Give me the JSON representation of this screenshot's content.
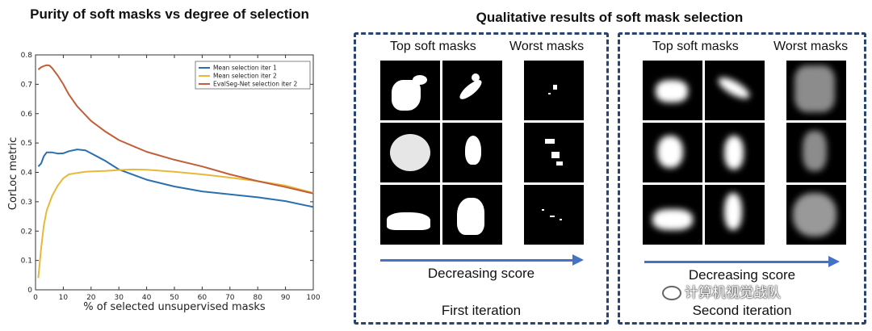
{
  "chart_data": {
    "type": "line",
    "title": "Purity of soft masks vs degree of selection",
    "xlabel": "% of selected unsupervised masks",
    "ylabel": "CorLoc metric",
    "xlim": [
      0,
      100
    ],
    "ylim": [
      0,
      0.8
    ],
    "xticks": [
      "0",
      "10",
      "20",
      "30",
      "40",
      "50",
      "60",
      "70",
      "80",
      "90",
      "100"
    ],
    "yticks": [
      "0",
      "0.1",
      "0.2",
      "0.3",
      "0.4",
      "0.5",
      "0.6",
      "0.7",
      "0.8"
    ],
    "legend_position": "top-right",
    "grid": false,
    "series": [
      {
        "name": "Mean selection iter 1",
        "color": "#2c6fad",
        "x": [
          1,
          2,
          3,
          4,
          6,
          8,
          10,
          12,
          15,
          18,
          20,
          25,
          30,
          40,
          50,
          60,
          70,
          80,
          90,
          100
        ],
        "y": [
          0.42,
          0.43,
          0.455,
          0.468,
          0.468,
          0.464,
          0.465,
          0.472,
          0.478,
          0.475,
          0.465,
          0.44,
          0.41,
          0.375,
          0.352,
          0.335,
          0.325,
          0.315,
          0.302,
          0.282
        ]
      },
      {
        "name": "Mean selection iter 2",
        "color": "#e8b83a",
        "x": [
          1,
          2,
          3,
          4,
          6,
          8,
          10,
          12,
          15,
          18,
          20,
          25,
          30,
          35,
          40,
          50,
          60,
          70,
          80,
          90,
          100
        ],
        "y": [
          0.04,
          0.14,
          0.22,
          0.27,
          0.32,
          0.355,
          0.38,
          0.393,
          0.398,
          0.402,
          0.403,
          0.405,
          0.408,
          0.41,
          0.409,
          0.402,
          0.393,
          0.382,
          0.37,
          0.355,
          0.33
        ]
      },
      {
        "name": "EvalSeg-Net selection iter 2",
        "color": "#c0603a",
        "x": [
          1,
          2,
          3,
          4,
          5,
          6,
          8,
          10,
          12,
          15,
          18,
          20,
          25,
          30,
          35,
          40,
          50,
          60,
          70,
          80,
          90,
          100
        ],
        "y": [
          0.75,
          0.758,
          0.762,
          0.765,
          0.764,
          0.755,
          0.73,
          0.7,
          0.665,
          0.625,
          0.595,
          0.575,
          0.54,
          0.51,
          0.49,
          0.47,
          0.443,
          0.42,
          0.393,
          0.37,
          0.35,
          0.328
        ]
      }
    ]
  },
  "qualitative": {
    "title": "Qualitative results of soft mask selection",
    "panels": [
      {
        "top_label": "Top soft masks",
        "worst_label": "Worst masks",
        "score_label": "Decreasing score",
        "iteration_label": "First iteration"
      },
      {
        "top_label": "Top soft masks",
        "worst_label": "Worst masks",
        "score_label": "Decreasing score",
        "iteration_label": "Second iteration"
      }
    ]
  },
  "watermark": "计算机视觉战队"
}
